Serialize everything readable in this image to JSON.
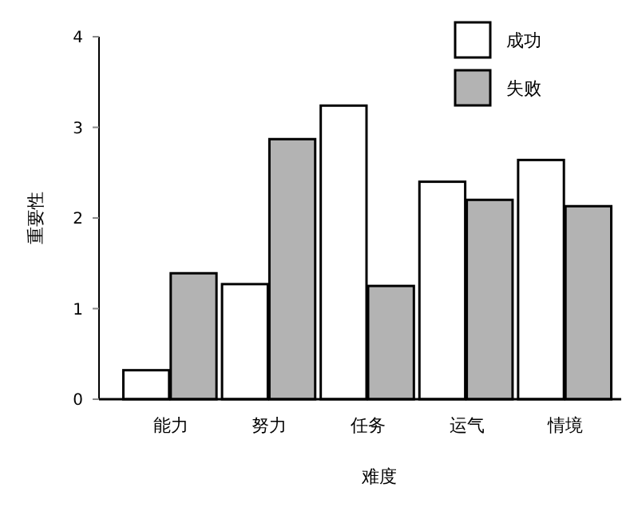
{
  "chart_data": {
    "type": "bar",
    "xlabel": "难度",
    "ylabel": "重要性",
    "categories": [
      "能力",
      "努力",
      "任务",
      "运气",
      "情境"
    ],
    "series": [
      {
        "name": "成功",
        "color": "#ffffff",
        "values": [
          0.32,
          1.27,
          3.24,
          2.4,
          2.64
        ]
      },
      {
        "name": "失败",
        "color": "#b3b3b3",
        "values": [
          1.39,
          2.87,
          1.25,
          2.2,
          2.13
        ]
      }
    ],
    "ylim": [
      0,
      4
    ],
    "yticks": [
      0,
      1,
      2,
      3,
      4
    ],
    "grid": false,
    "legend": "top right"
  }
}
